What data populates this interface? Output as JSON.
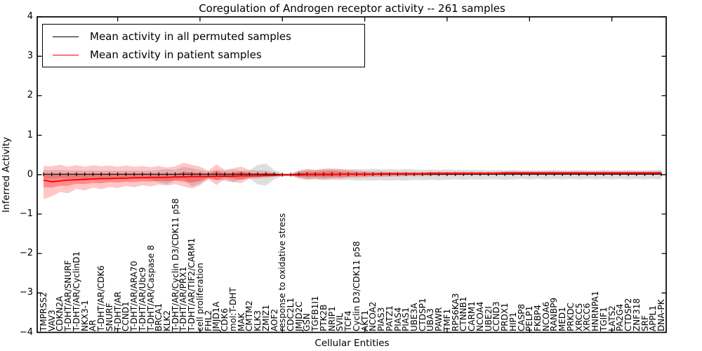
{
  "title": "Coregulation of Androgen receptor activity -- 261 samples",
  "chart_data": {
    "type": "line",
    "title": "Coregulation of Androgen receptor activity -- 261 samples",
    "xlabel": "Cellular Entities",
    "ylabel": "Inferred Activity",
    "ylim": [
      -4,
      4
    ],
    "xlim_points": 76,
    "grid": false,
    "legend_position": "upper left",
    "yticks": [
      "4",
      "3",
      "2",
      "1",
      "0",
      "−1",
      "−2",
      "−3",
      "−4"
    ],
    "ytick_values": [
      4,
      3,
      2,
      1,
      0,
      -1,
      -2,
      -3,
      -4
    ],
    "legend": [
      {
        "label": "Mean activity in all permuted samples",
        "color": "#000000"
      },
      {
        "label": "Mean activity in patient samples",
        "color": "#ff0000"
      }
    ],
    "categories": [
      "TMPRSS2",
      "VAV3",
      "CDKN2A",
      "T-DHT/AR/SNURF",
      "T-DHT/AR/CyclinD1",
      "NKX3-1",
      "AR",
      "T-DHT/AR/CDK6",
      "SNURF",
      "T-DHT/AR",
      "CCND1",
      "T-DHT/AR/ARA70",
      "T-DHT/AR/Ubc9",
      "T-DHT/AR/Caspase 8",
      "BRCA1",
      "KLK2",
      "T-DHT/AR/Cyclin D3/CDK11 p58",
      "T-DHT/AR/PRX1",
      "T-DHT/AR/TIF2/CARM1",
      "cell proliferation",
      "FHL2",
      "JMJD1A",
      "CDK6",
      "mol:T-DHT",
      "MAK",
      "CMTM2",
      "KLK3",
      "ZMIZ1",
      "AOF2",
      "response to oxidative stress",
      "CDC2L1",
      "JMJD2C",
      "GSN",
      "TGFB1I1",
      "PTK2B",
      "NRIP1",
      "SVIL",
      "TCF4",
      "Cyclin D3/CDK11 p58",
      "AKT1",
      "NCOA2",
      "PIAS3",
      "PATZ1",
      "PIAS4",
      "PIAS1",
      "UBE3A",
      "CTDSP1",
      "UBA3",
      "PAWR",
      "TMF1",
      "RPS6KA3",
      "CTNNB1",
      "CARM1",
      "NCOA4",
      "UBE2I",
      "CCND3",
      "PRDX1",
      "HIP1",
      "CASP8",
      "PELP1",
      "FKBP4",
      "NCOA6",
      "RANBP9",
      "MED1",
      "PRKDC",
      "XRCC5",
      "XRCC6",
      "HNRNPA1",
      "TGIF1",
      "LATS2",
      "PA2G4",
      "CTDSP2",
      "ZNF318",
      "SRF",
      "APPL1",
      "DNA-PK"
    ],
    "series": [
      {
        "name": "Mean activity in all permuted samples",
        "color": "#000000",
        "marker": "vertical-tick",
        "values": [
          0.01,
          0.01,
          0.01,
          0.01,
          0.01,
          0.01,
          0.01,
          0.01,
          0.01,
          0.01,
          0.01,
          0.01,
          0.01,
          0.01,
          0.01,
          0.01,
          0.01,
          0.01,
          0.01,
          0.01,
          0.01,
          0.01,
          0.01,
          0.01,
          0.01,
          0.01,
          0.01,
          0.01,
          0.01,
          0.0,
          0.0,
          0.01,
          0.01,
          0.01,
          0.01,
          0.01,
          0.01,
          0.01,
          0.01,
          0.01,
          0.01,
          0.01,
          0.01,
          0.01,
          0.01,
          0.01,
          0.01,
          0.01,
          0.01,
          0.01,
          0.01,
          0.01,
          0.01,
          0.01,
          0.01,
          0.01,
          0.01,
          0.01,
          0.01,
          0.01,
          0.01,
          0.01,
          0.01,
          0.01,
          0.01,
          0.01,
          0.01,
          0.01,
          0.01,
          0.01,
          0.01,
          0.01,
          0.01,
          0.01,
          0.01,
          0.01
        ]
      },
      {
        "name": "Mean activity in patient samples",
        "color": "#ff0000",
        "marker": "none",
        "values": [
          -0.14,
          -0.18,
          -0.16,
          -0.14,
          -0.13,
          -0.12,
          -0.11,
          -0.1,
          -0.1,
          -0.09,
          -0.09,
          -0.08,
          -0.08,
          -0.07,
          -0.07,
          -0.07,
          -0.06,
          -0.06,
          -0.05,
          -0.05,
          -0.05,
          -0.04,
          -0.04,
          -0.04,
          -0.03,
          -0.03,
          -0.03,
          -0.02,
          -0.02,
          -0.01,
          -0.01,
          -0.01,
          0.0,
          0.0,
          0.0,
          0.0,
          0.01,
          0.01,
          0.01,
          0.01,
          0.01,
          0.02,
          0.02,
          0.02,
          0.02,
          0.02,
          0.02,
          0.03,
          0.03,
          0.03,
          0.03,
          0.03,
          0.03,
          0.03,
          0.03,
          0.03,
          0.04,
          0.04,
          0.04,
          0.04,
          0.04,
          0.04,
          0.04,
          0.04,
          0.04,
          0.04,
          0.04,
          0.04,
          0.04,
          0.04,
          0.04,
          0.04,
          0.04,
          0.04,
          0.04,
          0.04
        ]
      }
    ],
    "bands": [
      {
        "name": "permuted samples spread",
        "color": "#000000",
        "opacity": 0.13,
        "lo": [
          -0.1,
          -0.1,
          -0.09,
          -0.1,
          -0.09,
          -0.1,
          -0.09,
          -0.1,
          -0.09,
          -0.1,
          -0.09,
          -0.1,
          -0.09,
          -0.12,
          -0.2,
          -0.24,
          -0.14,
          -0.12,
          -0.3,
          -0.22,
          -0.1,
          -0.12,
          -0.16,
          -0.2,
          -0.12,
          -0.1,
          -0.25,
          -0.28,
          -0.12,
          -0.04,
          -0.03,
          -0.1,
          -0.13,
          -0.12,
          -0.14,
          -0.13,
          -0.14,
          -0.13,
          -0.15,
          -0.14,
          -0.15,
          -0.14,
          -0.15,
          -0.14,
          -0.15,
          -0.13,
          -0.14,
          -0.13,
          -0.14,
          -0.13,
          -0.12,
          -0.13,
          -0.12,
          -0.13,
          -0.12,
          -0.12,
          -0.13,
          -0.12,
          -0.11,
          -0.12,
          -0.11,
          -0.12,
          -0.11,
          -0.12,
          -0.11,
          -0.12,
          -0.11,
          -0.12,
          -0.11,
          -0.12,
          -0.11,
          -0.12,
          -0.11,
          -0.12,
          -0.11,
          -0.12
        ],
        "hi": [
          0.12,
          0.11,
          0.12,
          0.11,
          0.11,
          0.1,
          0.11,
          0.1,
          0.1,
          0.1,
          0.1,
          0.1,
          0.1,
          0.1,
          0.12,
          0.14,
          0.12,
          0.2,
          0.16,
          0.12,
          0.08,
          0.12,
          0.1,
          0.12,
          0.1,
          0.1,
          0.25,
          0.28,
          0.12,
          0.04,
          0.03,
          0.1,
          0.13,
          0.12,
          0.14,
          0.13,
          0.14,
          0.13,
          0.14,
          0.13,
          0.15,
          0.13,
          0.14,
          0.13,
          0.14,
          0.13,
          0.12,
          0.13,
          0.12,
          0.13,
          0.12,
          0.12,
          0.12,
          0.12,
          0.11,
          0.12,
          0.11,
          0.12,
          0.11,
          0.11,
          0.11,
          0.11,
          0.12,
          0.11,
          0.11,
          0.12,
          0.11,
          0.11,
          0.12,
          0.11,
          0.11,
          0.12,
          0.11,
          0.11,
          0.12,
          0.12
        ]
      },
      {
        "name": "patient samples outer spread",
        "color": "#ff0000",
        "opacity": 0.22,
        "lo": [
          -0.62,
          -0.55,
          -0.44,
          -0.47,
          -0.36,
          -0.4,
          -0.33,
          -0.37,
          -0.31,
          -0.34,
          -0.29,
          -0.32,
          -0.27,
          -0.3,
          -0.25,
          -0.28,
          -0.24,
          -0.3,
          -0.35,
          -0.27,
          -0.12,
          -0.26,
          -0.12,
          -0.18,
          -0.22,
          -0.1,
          -0.1,
          -0.08,
          -0.05,
          -0.03,
          -0.02,
          -0.08,
          -0.12,
          -0.1,
          -0.12,
          -0.1,
          -0.1,
          -0.08,
          -0.08,
          -0.07,
          -0.06,
          -0.06,
          -0.05,
          -0.05,
          -0.04,
          -0.04,
          -0.04,
          -0.03,
          -0.03,
          -0.02,
          -0.02,
          -0.02,
          -0.01,
          -0.01,
          -0.01,
          -0.01,
          0.0,
          0.0,
          0.0,
          0.0,
          0.0,
          0.0,
          0.0,
          0.0,
          0.0,
          0.0,
          0.0,
          0.0,
          0.0,
          0.0,
          0.0,
          0.0,
          0.0,
          0.0,
          0.0,
          0.0
        ],
        "hi": [
          0.22,
          0.21,
          0.25,
          0.2,
          0.24,
          0.2,
          0.24,
          0.21,
          0.23,
          0.2,
          0.23,
          0.2,
          0.22,
          0.19,
          0.22,
          0.18,
          0.21,
          0.3,
          0.25,
          0.2,
          0.1,
          0.26,
          0.12,
          0.16,
          0.2,
          0.12,
          0.1,
          0.1,
          0.06,
          0.03,
          0.02,
          0.1,
          0.14,
          0.12,
          0.15,
          0.16,
          0.14,
          0.12,
          0.1,
          0.09,
          0.08,
          0.08,
          0.07,
          0.07,
          0.07,
          0.06,
          0.06,
          0.07,
          0.07,
          0.07,
          0.07,
          0.07,
          0.07,
          0.07,
          0.07,
          0.07,
          0.08,
          0.08,
          0.08,
          0.08,
          0.08,
          0.08,
          0.08,
          0.08,
          0.08,
          0.08,
          0.08,
          0.08,
          0.08,
          0.08,
          0.08,
          0.08,
          0.08,
          0.08,
          0.08,
          0.09
        ]
      },
      {
        "name": "patient samples inner spread",
        "color": "#ff0000",
        "opacity": 0.3,
        "lo": [
          -0.32,
          -0.33,
          -0.28,
          -0.28,
          -0.23,
          -0.24,
          -0.21,
          -0.22,
          -0.19,
          -0.2,
          -0.18,
          -0.19,
          -0.17,
          -0.18,
          -0.16,
          -0.17,
          -0.15,
          -0.18,
          -0.2,
          -0.16,
          -0.08,
          -0.15,
          -0.08,
          -0.11,
          -0.13,
          -0.07,
          -0.06,
          -0.05,
          -0.04,
          -0.02,
          -0.01,
          -0.05,
          -0.07,
          -0.06,
          -0.07,
          -0.06,
          -0.06,
          -0.05,
          -0.04,
          -0.04,
          -0.03,
          -0.03,
          -0.02,
          -0.02,
          -0.02,
          -0.01,
          -0.01,
          -0.01,
          0.0,
          0.0,
          0.0,
          0.0,
          0.0,
          0.0,
          0.0,
          0.0,
          0.01,
          0.01,
          0.01,
          0.01,
          0.01,
          0.01,
          0.01,
          0.01,
          0.01,
          0.01,
          0.01,
          0.01,
          0.01,
          0.01,
          0.01,
          0.01,
          0.01,
          0.01,
          0.01,
          0.01
        ],
        "hi": [
          0.0,
          0.0,
          0.01,
          -0.01,
          0.01,
          0.0,
          0.02,
          0.0,
          0.01,
          0.0,
          0.01,
          0.0,
          0.01,
          0.0,
          0.01,
          0.0,
          0.01,
          0.08,
          0.06,
          0.04,
          0.02,
          0.1,
          0.03,
          0.05,
          0.08,
          0.04,
          0.03,
          0.04,
          0.02,
          0.01,
          0.01,
          0.05,
          0.08,
          0.07,
          0.09,
          0.1,
          0.08,
          0.07,
          0.06,
          0.06,
          0.05,
          0.05,
          0.05,
          0.05,
          0.05,
          0.05,
          0.05,
          0.06,
          0.06,
          0.06,
          0.06,
          0.06,
          0.06,
          0.06,
          0.06,
          0.06,
          0.07,
          0.07,
          0.07,
          0.07,
          0.07,
          0.07,
          0.07,
          0.07,
          0.07,
          0.07,
          0.07,
          0.07,
          0.07,
          0.07,
          0.07,
          0.07,
          0.07,
          0.07,
          0.07,
          0.07
        ]
      }
    ]
  }
}
